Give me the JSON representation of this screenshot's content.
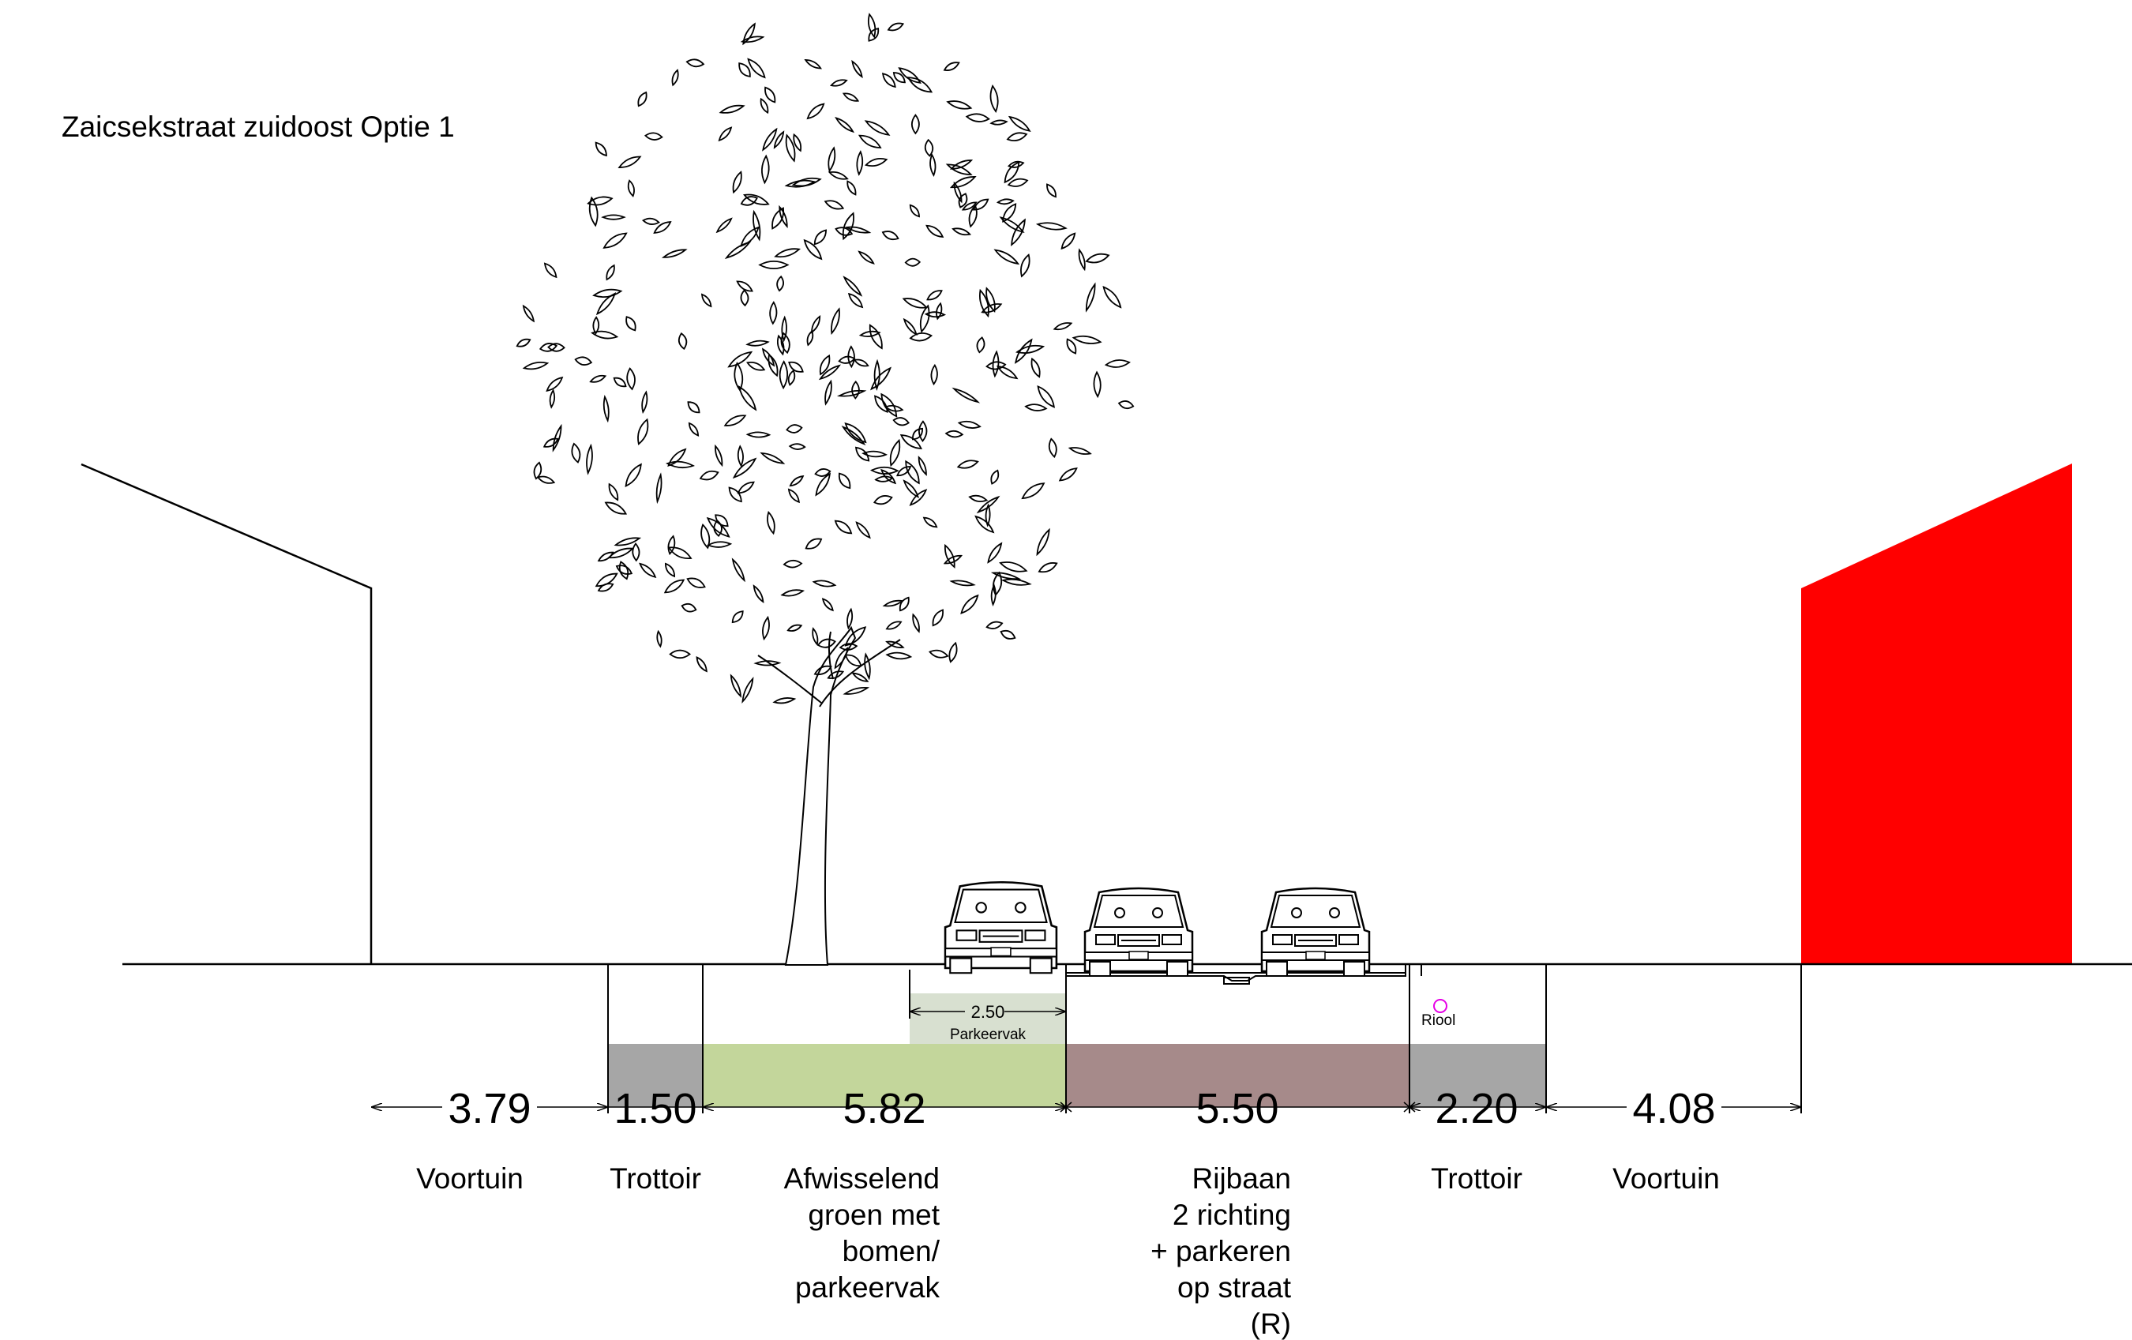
{
  "title": "Zaicsekstraat zuidoost Optie 1",
  "colors": {
    "building_right": "#ff0000",
    "sidewalk": "#a6a6a6",
    "green_strip": "#c3d69b",
    "parking_box": "#d8e0d0",
    "roadway": "#a68a8a",
    "sewer": "#e600e6",
    "line": "#000000"
  },
  "icons": [
    "tree-icon",
    "car-icon",
    "sewer-marker"
  ],
  "segments": [
    {
      "width": "3.79",
      "label": [
        "Voortuin"
      ]
    },
    {
      "width": "1.50",
      "label": [
        "Trottoir"
      ]
    },
    {
      "width": "5.82",
      "label": [
        "Afwisselend",
        "groen met",
        "bomen/",
        "parkeervak"
      ]
    },
    {
      "width": "5.50",
      "label": [
        "Rijbaan",
        "2 richting",
        "+ parkeren",
        "op straat",
        "(R)"
      ]
    },
    {
      "width": "2.20",
      "label": [
        "Trottoir"
      ]
    },
    {
      "width": "4.08",
      "label": [
        "Voortuin"
      ]
    }
  ],
  "parking": {
    "width": "2.50",
    "label": "Parkeervak"
  },
  "sewer_label": "Riool"
}
